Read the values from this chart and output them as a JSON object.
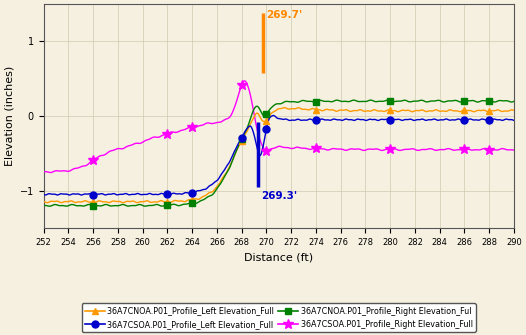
{
  "title": "",
  "xlabel": "Distance (ft)",
  "ylabel": "Elevation (inches)",
  "xlim": [
    252,
    290
  ],
  "ylim": [
    -1.5,
    1.5
  ],
  "xticks": [
    252,
    254,
    256,
    258,
    260,
    262,
    264,
    266,
    268,
    270,
    272,
    274,
    276,
    278,
    280,
    282,
    284,
    286,
    288,
    290
  ],
  "yticks": [
    -1.0,
    0.0,
    1.0
  ],
  "background_color": "#f5f0e0",
  "grid_color": "#d0c8b0",
  "east_transition": 269.3,
  "west_transition": 269.7,
  "annotation_east_color": "#0000cc",
  "annotation_west_color": "#ff8800",
  "cnoa_left_color": "#ff9900",
  "cnoa_right_color": "#008000",
  "csoa_left_color": "#0000cc",
  "csoa_right_color": "#ff00ff",
  "legend_labels": [
    "36A7CNOA.P01_Profile_Left Elevation_Full",
    "36A7CSOA.P01_Profile_Left Elevation_Full",
    "36A7CNOA.P01_Profile_Right Elevation_Ful",
    "36A7CSOA.P01_Profile_Right Elevation_Full"
  ]
}
